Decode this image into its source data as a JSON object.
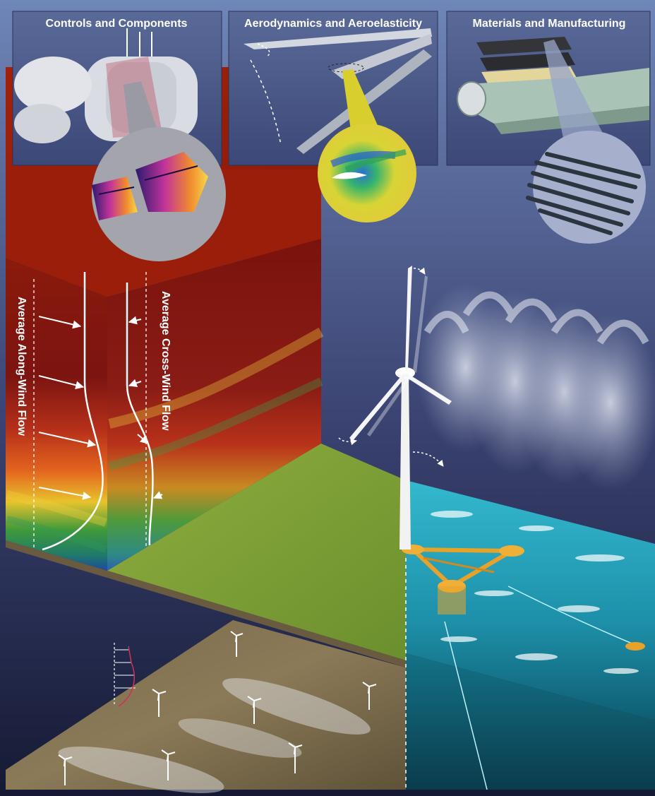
{
  "panels": {
    "controls": {
      "label": "Controls and Components"
    },
    "aero": {
      "label": "Aerodynamics and Aeroelasticity"
    },
    "materials": {
      "label": "Materials and Manufacturing"
    }
  },
  "flows": {
    "along_wind": "Average Along-Wind Flow",
    "cross_wind": "Average Cross-Wind Flow"
  },
  "colors": {
    "background_top": "#6f86b8",
    "background_bottom": "#151a33",
    "atmosphere_top": "#9e1a08",
    "grass": "#7fa136",
    "ocean": "#2aa9c2",
    "platform": "#e8a22a"
  }
}
